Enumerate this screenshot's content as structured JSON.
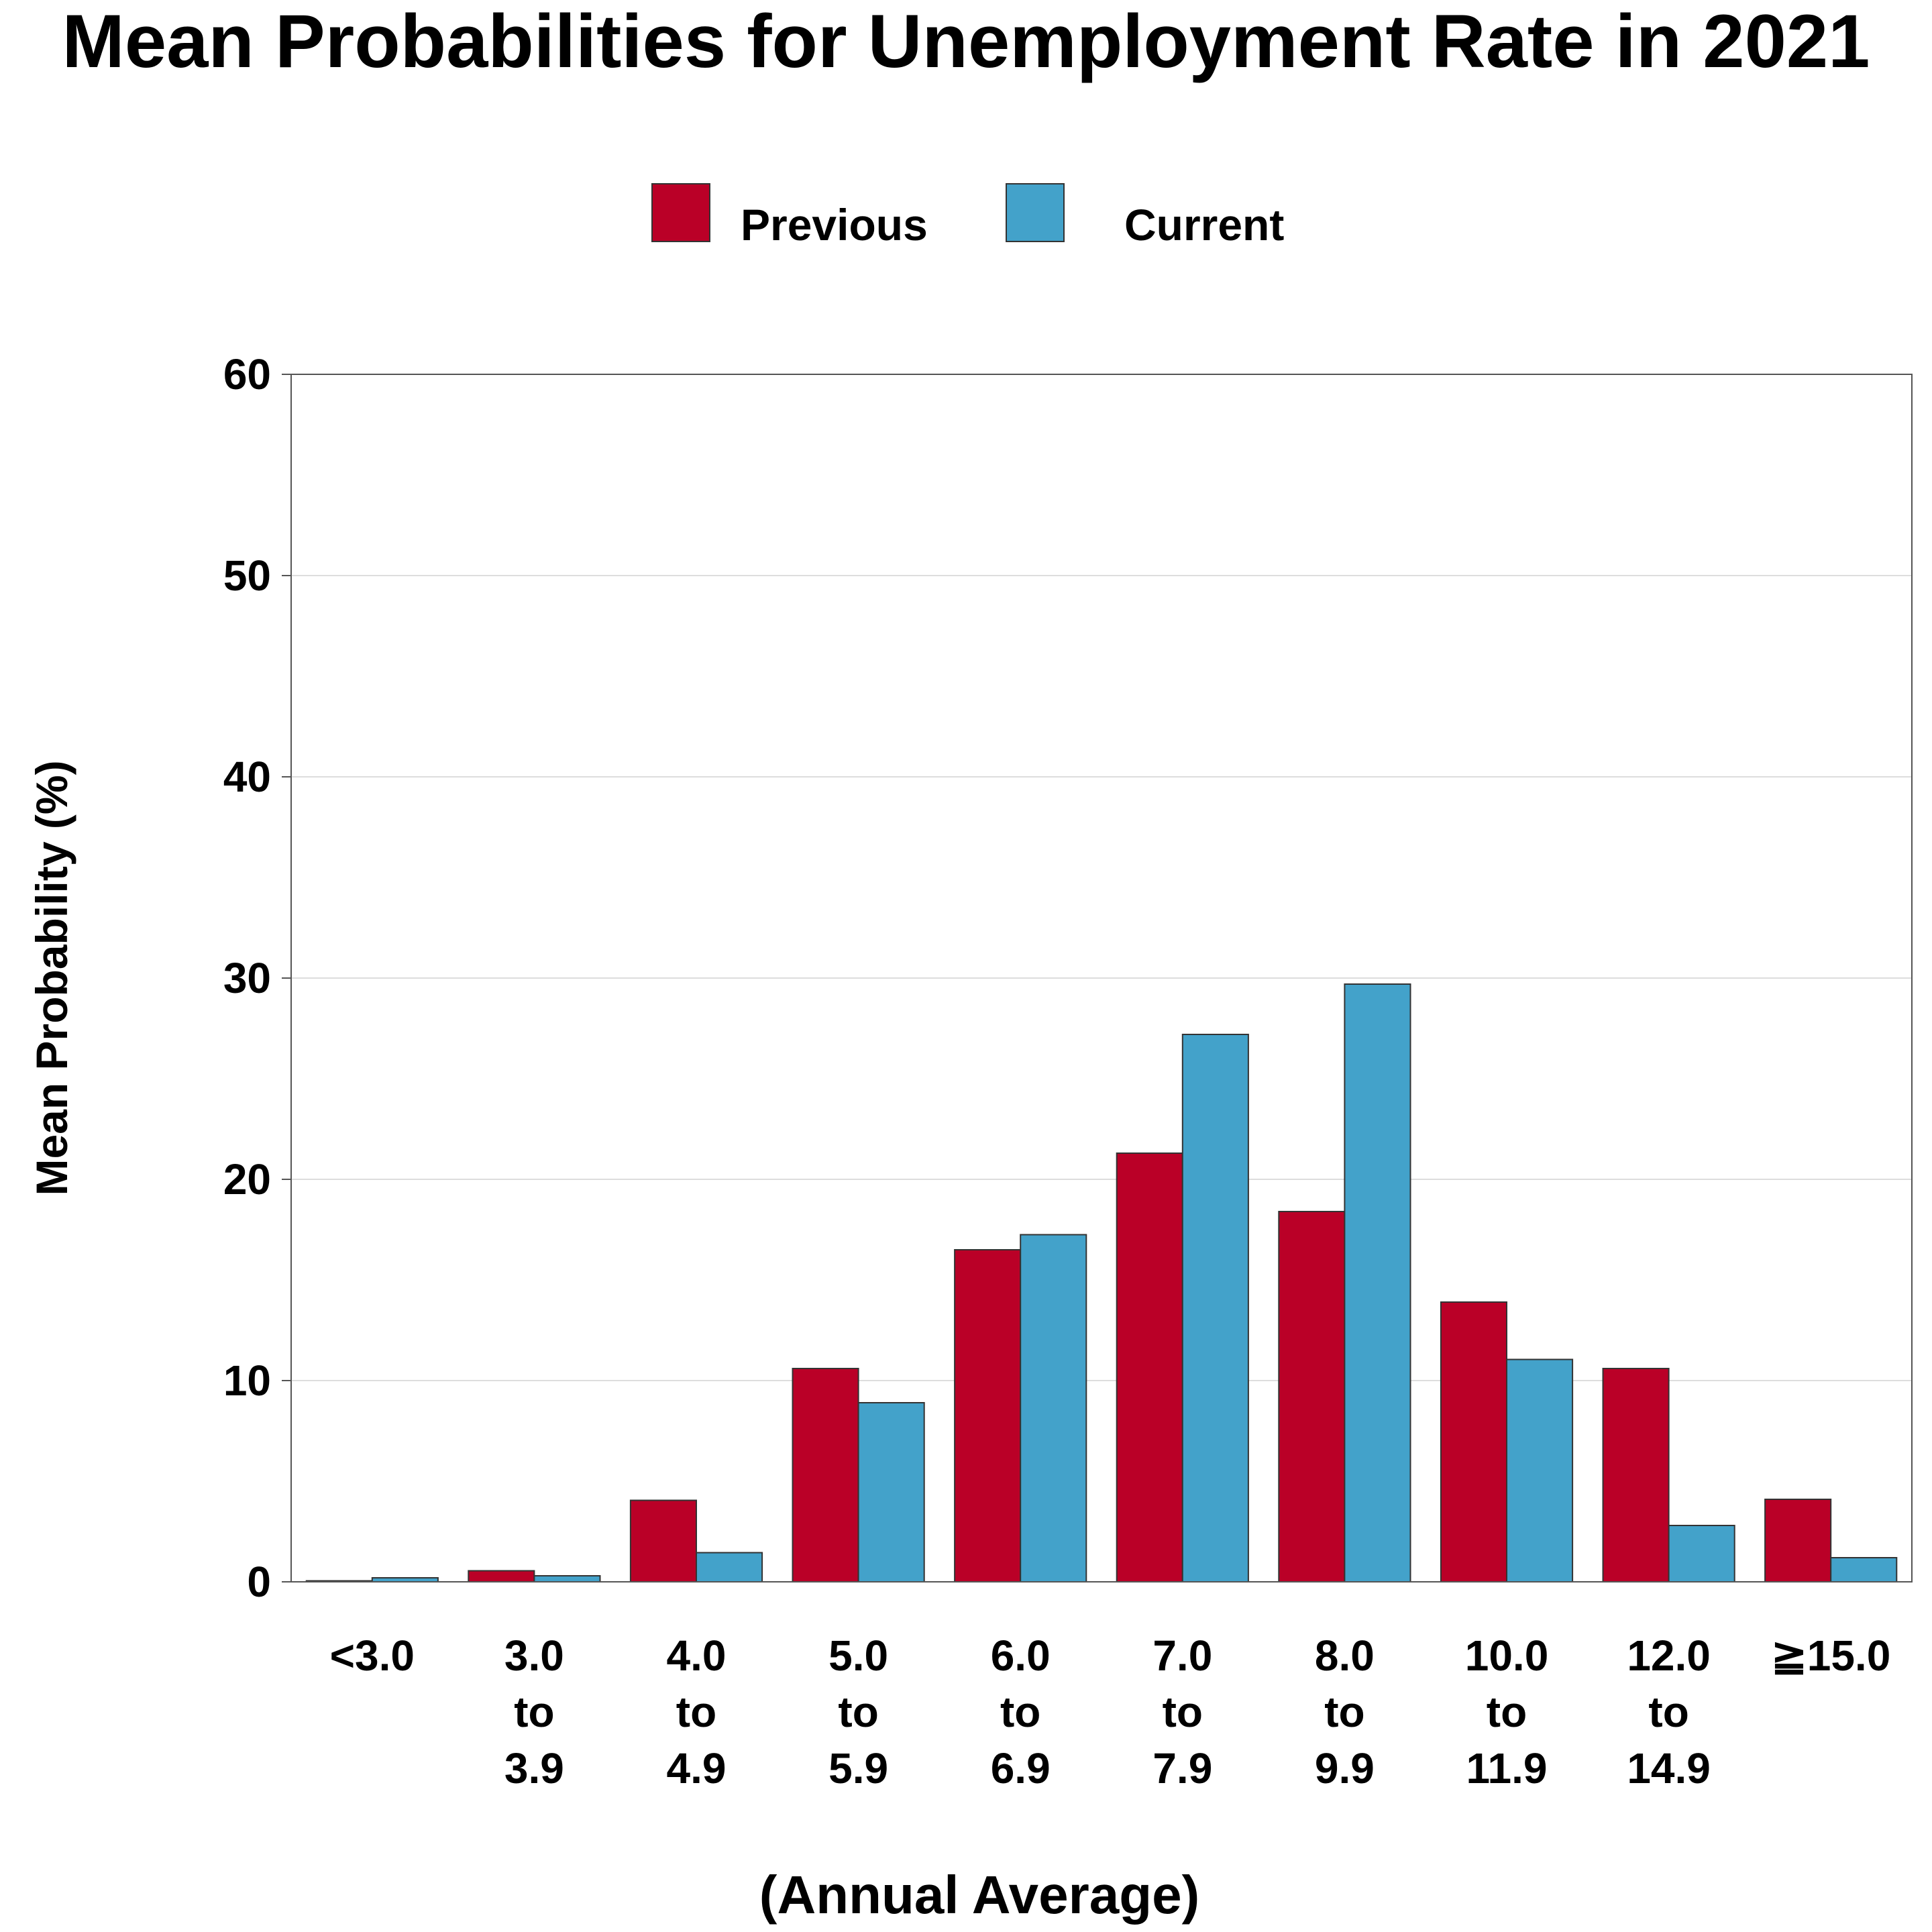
{
  "chart_data": {
    "type": "bar",
    "title": "Mean Probabilities for Unemployment Rate in 2021",
    "xlabel": "(Annual Average)",
    "ylabel": "Mean Probability (%)",
    "ylim": [
      0,
      60
    ],
    "yticks": [
      0,
      10,
      20,
      30,
      40,
      50,
      60
    ],
    "grid": true,
    "legend_position": "top-center",
    "categories": [
      [
        "<3.0"
      ],
      [
        "3.0",
        "to",
        "3.9"
      ],
      [
        "4.0",
        "to",
        "4.9"
      ],
      [
        "5.0",
        "to",
        "5.9"
      ],
      [
        "6.0",
        "to",
        "6.9"
      ],
      [
        "7.0",
        "to",
        "7.9"
      ],
      [
        "8.0",
        "to",
        "9.9"
      ],
      [
        "10.0",
        "to",
        "11.9"
      ],
      [
        "12.0",
        "to",
        "14.9"
      ],
      [
        "≧15.0"
      ]
    ],
    "series": [
      {
        "name": "Previous",
        "color": "#BA0027",
        "values": [
          0.05,
          0.55,
          4.05,
          10.6,
          16.5,
          21.3,
          18.4,
          13.9,
          10.6,
          4.1
        ]
      },
      {
        "name": "Current",
        "color": "#43A2CA",
        "values": [
          0.2,
          0.3,
          1.45,
          8.9,
          17.25,
          27.2,
          29.7,
          11.05,
          2.8,
          1.2
        ]
      }
    ]
  }
}
